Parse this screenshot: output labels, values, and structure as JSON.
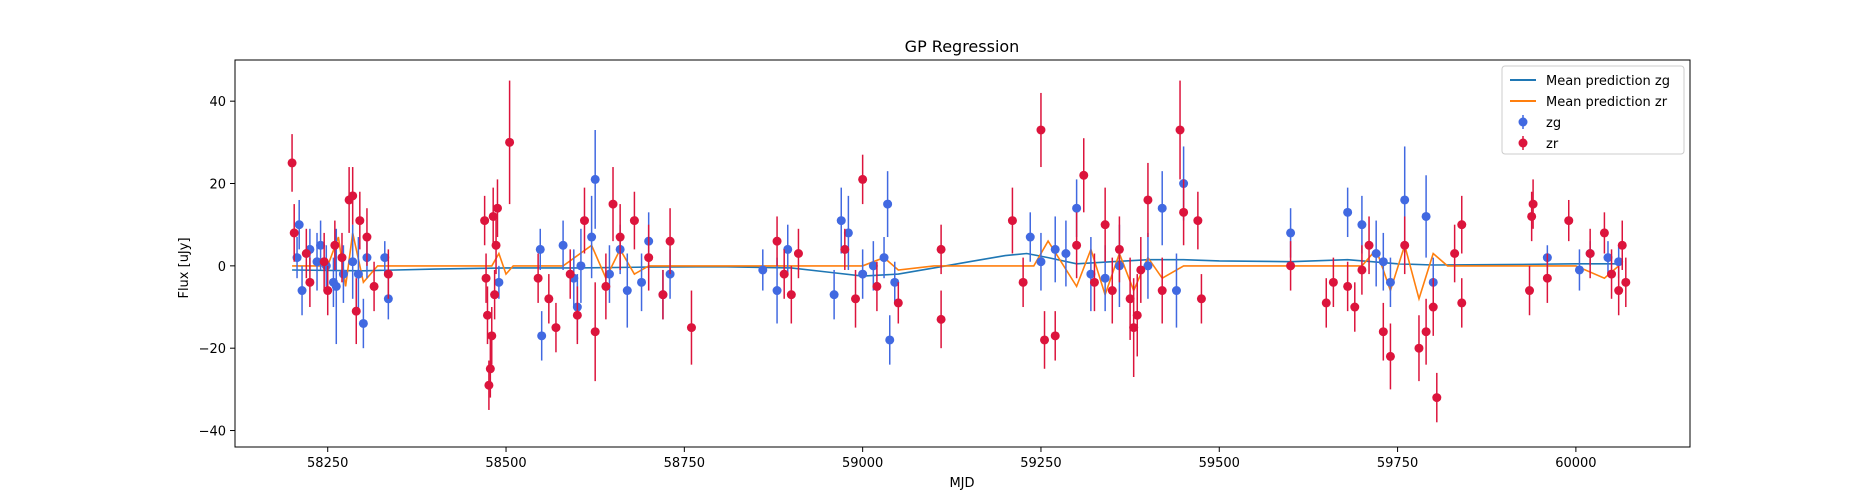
{
  "chart_data": {
    "type": "scatter",
    "title": "GP Regression",
    "xlabel": "MJD",
    "ylabel": "Flux [uJy]",
    "xlim": [
      58120,
      60160
    ],
    "ylim": [
      -44,
      50
    ],
    "xticks": [
      58250,
      58500,
      58750,
      59000,
      59250,
      59500,
      59750,
      60000
    ],
    "yticks": [
      -40,
      -20,
      0,
      20,
      40
    ],
    "grid": false,
    "legend_position": "top-right",
    "legend": [
      {
        "label": "Mean prediction zg",
        "kind": "line",
        "color": "#1f77b4"
      },
      {
        "label": "Mean prediction zr",
        "kind": "line",
        "color": "#ff7f0e"
      },
      {
        "label": "zg",
        "kind": "errorbar",
        "color": "#4169e1"
      },
      {
        "label": "zr",
        "kind": "errorbar",
        "color": "#dc143c"
      }
    ],
    "mean_zg": {
      "color": "#1f77b4",
      "x": [
        58200,
        58300,
        58400,
        58500,
        58600,
        58700,
        58800,
        58900,
        58950,
        59000,
        59050,
        59100,
        59150,
        59200,
        59230,
        59260,
        59300,
        59350,
        59400,
        59450,
        59500,
        59600,
        59680,
        59750,
        59800,
        59900,
        60000,
        60060
      ],
      "y": [
        -1,
        -1.2,
        -0.8,
        -0.5,
        -0.5,
        -0.3,
        -0.2,
        -0.5,
        -1.5,
        -2.5,
        -2.0,
        -0.5,
        1.0,
        2.5,
        3.0,
        2.0,
        0.5,
        1.0,
        1.5,
        1.5,
        1.2,
        1.0,
        1.5,
        0.5,
        0.2,
        0.3,
        0.5,
        0.5
      ]
    },
    "mean_zr": {
      "color": "#ff7f0e",
      "x": [
        58200,
        58250,
        58265,
        58275,
        58285,
        58300,
        58320,
        58480,
        58490,
        58500,
        58510,
        58580,
        58620,
        58640,
        58660,
        58680,
        58700,
        58720,
        58900,
        58950,
        59000,
        59030,
        59050,
        59100,
        59240,
        59260,
        59300,
        59320,
        59340,
        59360,
        59380,
        59400,
        59420,
        59450,
        59700,
        59720,
        59740,
        59760,
        59780,
        59800,
        59820,
        60000,
        60040,
        60060
      ],
      "y": [
        0,
        0,
        7,
        -5,
        8,
        -4,
        0,
        0,
        3,
        -2,
        0,
        0,
        5,
        -3,
        4,
        -2,
        0,
        0,
        0,
        0,
        0,
        2,
        -1,
        0,
        0,
        6,
        -5,
        4,
        -7,
        3,
        -6,
        2,
        -3,
        0,
        0,
        4,
        -6,
        5,
        -8,
        3,
        0,
        0,
        -3,
        0
      ]
    },
    "series": [
      {
        "name": "zg",
        "color": "#4169e1",
        "points": [
          [
            58207,
            2,
            5
          ],
          [
            58210,
            10,
            6
          ],
          [
            58214,
            -6,
            6
          ],
          [
            58225,
            4,
            5
          ],
          [
            58235,
            1,
            7
          ],
          [
            58240,
            5,
            6
          ],
          [
            58248,
            0,
            5
          ],
          [
            58258,
            -4,
            6
          ],
          [
            58262,
            -5,
            14
          ],
          [
            58272,
            -2,
            7
          ],
          [
            58285,
            1,
            9
          ],
          [
            58293,
            -2,
            9
          ],
          [
            58300,
            -14,
            6
          ],
          [
            58305,
            2,
            5
          ],
          [
            58330,
            2,
            4
          ],
          [
            58335,
            -8,
            5
          ],
          [
            58490,
            -4,
            4
          ],
          [
            58548,
            4,
            5
          ],
          [
            58550,
            -17,
            6
          ],
          [
            58580,
            5,
            6
          ],
          [
            58595,
            -3,
            7
          ],
          [
            58600,
            -10,
            8
          ],
          [
            58605,
            0,
            9
          ],
          [
            58620,
            7,
            10
          ],
          [
            58625,
            21,
            12
          ],
          [
            58645,
            -2,
            7
          ],
          [
            58660,
            4,
            6
          ],
          [
            58670,
            -6,
            9
          ],
          [
            58690,
            -4,
            7
          ],
          [
            58700,
            6,
            7
          ],
          [
            58720,
            -7,
            6
          ],
          [
            58730,
            -2,
            6
          ],
          [
            58860,
            -1,
            5
          ],
          [
            58880,
            -6,
            8
          ],
          [
            58895,
            4,
            6
          ],
          [
            58960,
            -7,
            6
          ],
          [
            58970,
            11,
            8
          ],
          [
            58980,
            8,
            9
          ],
          [
            59000,
            -2,
            6
          ],
          [
            59015,
            0,
            6
          ],
          [
            59030,
            2,
            5
          ],
          [
            59035,
            15,
            8
          ],
          [
            59038,
            -18,
            6
          ],
          [
            59045,
            -4,
            5
          ],
          [
            59235,
            7,
            6
          ],
          [
            59250,
            1,
            7
          ],
          [
            59270,
            4,
            8
          ],
          [
            59285,
            3,
            8
          ],
          [
            59300,
            14,
            7
          ],
          [
            59320,
            -2,
            9
          ],
          [
            59340,
            -3,
            8
          ],
          [
            59360,
            0,
            10
          ],
          [
            59400,
            0,
            8
          ],
          [
            59420,
            14,
            9
          ],
          [
            59440,
            -6,
            9
          ],
          [
            59450,
            20,
            9
          ],
          [
            59600,
            8,
            6
          ],
          [
            59680,
            13,
            6
          ],
          [
            59700,
            10,
            7
          ],
          [
            59720,
            3,
            8
          ],
          [
            59730,
            1,
            7
          ],
          [
            59740,
            -4,
            6
          ],
          [
            59760,
            16,
            13
          ],
          [
            59790,
            12,
            10
          ],
          [
            59800,
            -4,
            6
          ],
          [
            59960,
            2,
            3
          ],
          [
            60005,
            -1,
            5
          ],
          [
            60020,
            3,
            3
          ],
          [
            60045,
            2,
            4
          ],
          [
            60060,
            1,
            4
          ]
        ]
      },
      {
        "name": "zr",
        "color": "#dc143c",
        "points": [
          [
            58200,
            25,
            7
          ],
          [
            58203,
            8,
            7
          ],
          [
            58220,
            3,
            6
          ],
          [
            58225,
            -4,
            6
          ],
          [
            58245,
            1,
            7
          ],
          [
            58250,
            -6,
            6
          ],
          [
            58260,
            5,
            6
          ],
          [
            58270,
            2,
            6
          ],
          [
            58280,
            16,
            8
          ],
          [
            58285,
            17,
            7
          ],
          [
            58290,
            -11,
            8
          ],
          [
            58295,
            11,
            7
          ],
          [
            58305,
            7,
            7
          ],
          [
            58315,
            -5,
            6
          ],
          [
            58335,
            -2,
            6
          ],
          [
            58470,
            11,
            6
          ],
          [
            58472,
            -3,
            6
          ],
          [
            58474,
            -12,
            7
          ],
          [
            58476,
            -29,
            6
          ],
          [
            58478,
            -25,
            7
          ],
          [
            58480,
            -17,
            7
          ],
          [
            58482,
            12,
            7
          ],
          [
            58484,
            -7,
            6
          ],
          [
            58486,
            5,
            7
          ],
          [
            58488,
            14,
            7
          ],
          [
            58505,
            30,
            15
          ],
          [
            58545,
            -3,
            6
          ],
          [
            58560,
            -8,
            6
          ],
          [
            58570,
            -15,
            6
          ],
          [
            58590,
            -2,
            6
          ],
          [
            58600,
            -12,
            7
          ],
          [
            58610,
            11,
            8
          ],
          [
            58625,
            -16,
            12
          ],
          [
            58640,
            -5,
            8
          ],
          [
            58650,
            15,
            9
          ],
          [
            58660,
            7,
            8
          ],
          [
            58680,
            11,
            7
          ],
          [
            58700,
            2,
            8
          ],
          [
            58720,
            -7,
            6
          ],
          [
            58730,
            6,
            8
          ],
          [
            58760,
            -15,
            9
          ],
          [
            58880,
            6,
            6
          ],
          [
            58890,
            -2,
            6
          ],
          [
            58900,
            -7,
            7
          ],
          [
            58910,
            3,
            6
          ],
          [
            58975,
            4,
            5
          ],
          [
            58990,
            -8,
            7
          ],
          [
            59000,
            21,
            6
          ],
          [
            59020,
            -5,
            6
          ],
          [
            59050,
            -9,
            5
          ],
          [
            59110,
            4,
            6
          ],
          [
            59110,
            -13,
            7
          ],
          [
            59210,
            11,
            8
          ],
          [
            59225,
            -4,
            6
          ],
          [
            59250,
            33,
            9
          ],
          [
            59255,
            -18,
            7
          ],
          [
            59270,
            -17,
            6
          ],
          [
            59300,
            5,
            8
          ],
          [
            59310,
            22,
            9
          ],
          [
            59325,
            -4,
            7
          ],
          [
            59340,
            10,
            9
          ],
          [
            59350,
            -6,
            8
          ],
          [
            59360,
            4,
            8
          ],
          [
            59375,
            -8,
            10
          ],
          [
            59380,
            -15,
            12
          ],
          [
            59385,
            -12,
            10
          ],
          [
            59390,
            -1,
            8
          ],
          [
            59400,
            16,
            9
          ],
          [
            59420,
            -6,
            8
          ],
          [
            59445,
            33,
            12
          ],
          [
            59450,
            13,
            8
          ],
          [
            59470,
            11,
            7
          ],
          [
            59475,
            -8,
            6
          ],
          [
            59600,
            0,
            6
          ],
          [
            59650,
            -9,
            6
          ],
          [
            59660,
            -4,
            6
          ],
          [
            59680,
            -5,
            6
          ],
          [
            59690,
            -10,
            6
          ],
          [
            59700,
            -1,
            6
          ],
          [
            59710,
            5,
            7
          ],
          [
            59730,
            -16,
            7
          ],
          [
            59740,
            -22,
            8
          ],
          [
            59760,
            5,
            7
          ],
          [
            59780,
            -20,
            8
          ],
          [
            59790,
            -16,
            8
          ],
          [
            59800,
            -10,
            7
          ],
          [
            59805,
            -32,
            6
          ],
          [
            59830,
            3,
            7
          ],
          [
            59840,
            10,
            7
          ],
          [
            59840,
            -9,
            6
          ],
          [
            59935,
            -6,
            6
          ],
          [
            59938,
            12,
            6
          ],
          [
            59940,
            15,
            6
          ],
          [
            59960,
            -3,
            6
          ],
          [
            59990,
            11,
            5
          ],
          [
            60020,
            3,
            6
          ],
          [
            60040,
            8,
            5
          ],
          [
            60050,
            -2,
            6
          ],
          [
            60060,
            -6,
            6
          ],
          [
            60065,
            5,
            6
          ],
          [
            60070,
            -4,
            6
          ]
        ]
      }
    ]
  }
}
